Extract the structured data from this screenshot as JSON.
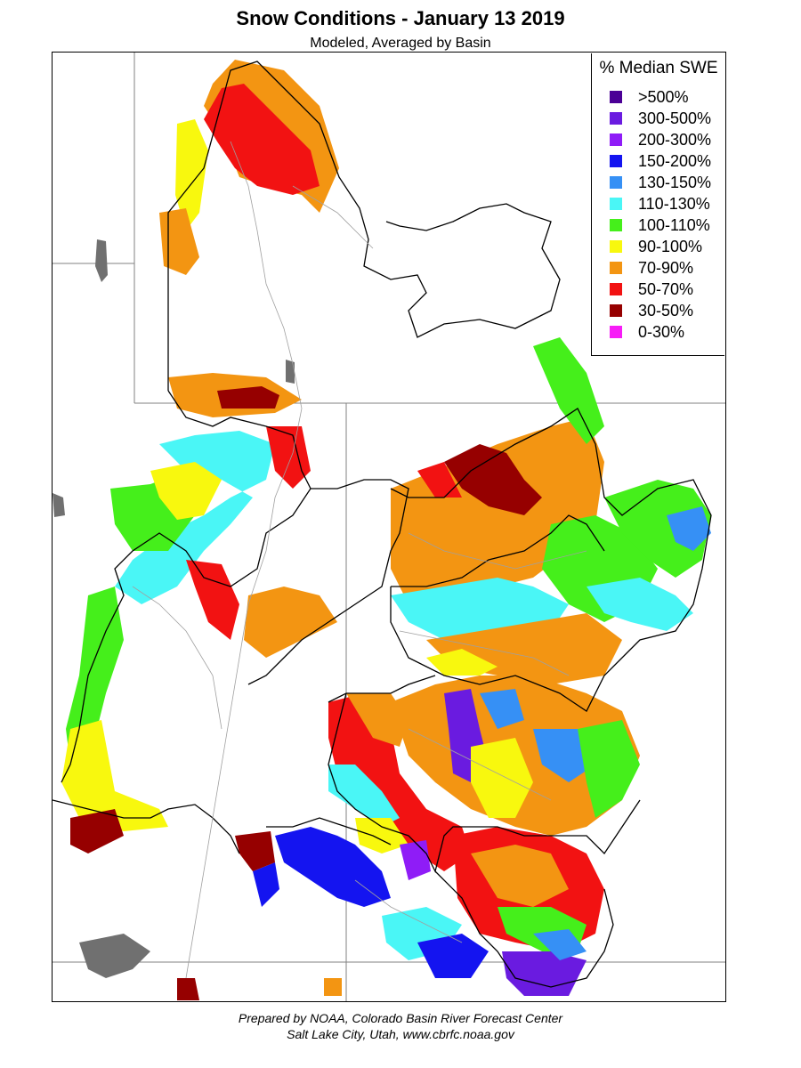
{
  "title": "Snow Conditions - January 13 2019",
  "subtitle": "Modeled, Averaged by Basin",
  "legend": {
    "title": "% Median SWE",
    "items": [
      {
        "label": ">500%",
        "color": "#4b0096"
      },
      {
        "label": "300-500%",
        "color": "#6a1be0"
      },
      {
        "label": "200-300%",
        "color": "#8f1cf7"
      },
      {
        "label": "150-200%",
        "color": "#1414f0"
      },
      {
        "label": "130-150%",
        "color": "#3690f5"
      },
      {
        "label": "110-130%",
        "color": "#4af6f6"
      },
      {
        "label": "100-110%",
        "color": "#45ef1b"
      },
      {
        "label": "90-100%",
        "color": "#f8f80e"
      },
      {
        "label": "70-90%",
        "color": "#f39512"
      },
      {
        "label": "50-70%",
        "color": "#f21212"
      },
      {
        "label": "30-50%",
        "color": "#960000"
      },
      {
        "label": "0-30%",
        "color": "#f71cf7"
      }
    ]
  },
  "footer": {
    "line1": "Prepared by NOAA, Colorado Basin River Forecast Center",
    "line2": "Salt Lake City, Utah, www.cbrfc.noaa.gov"
  }
}
